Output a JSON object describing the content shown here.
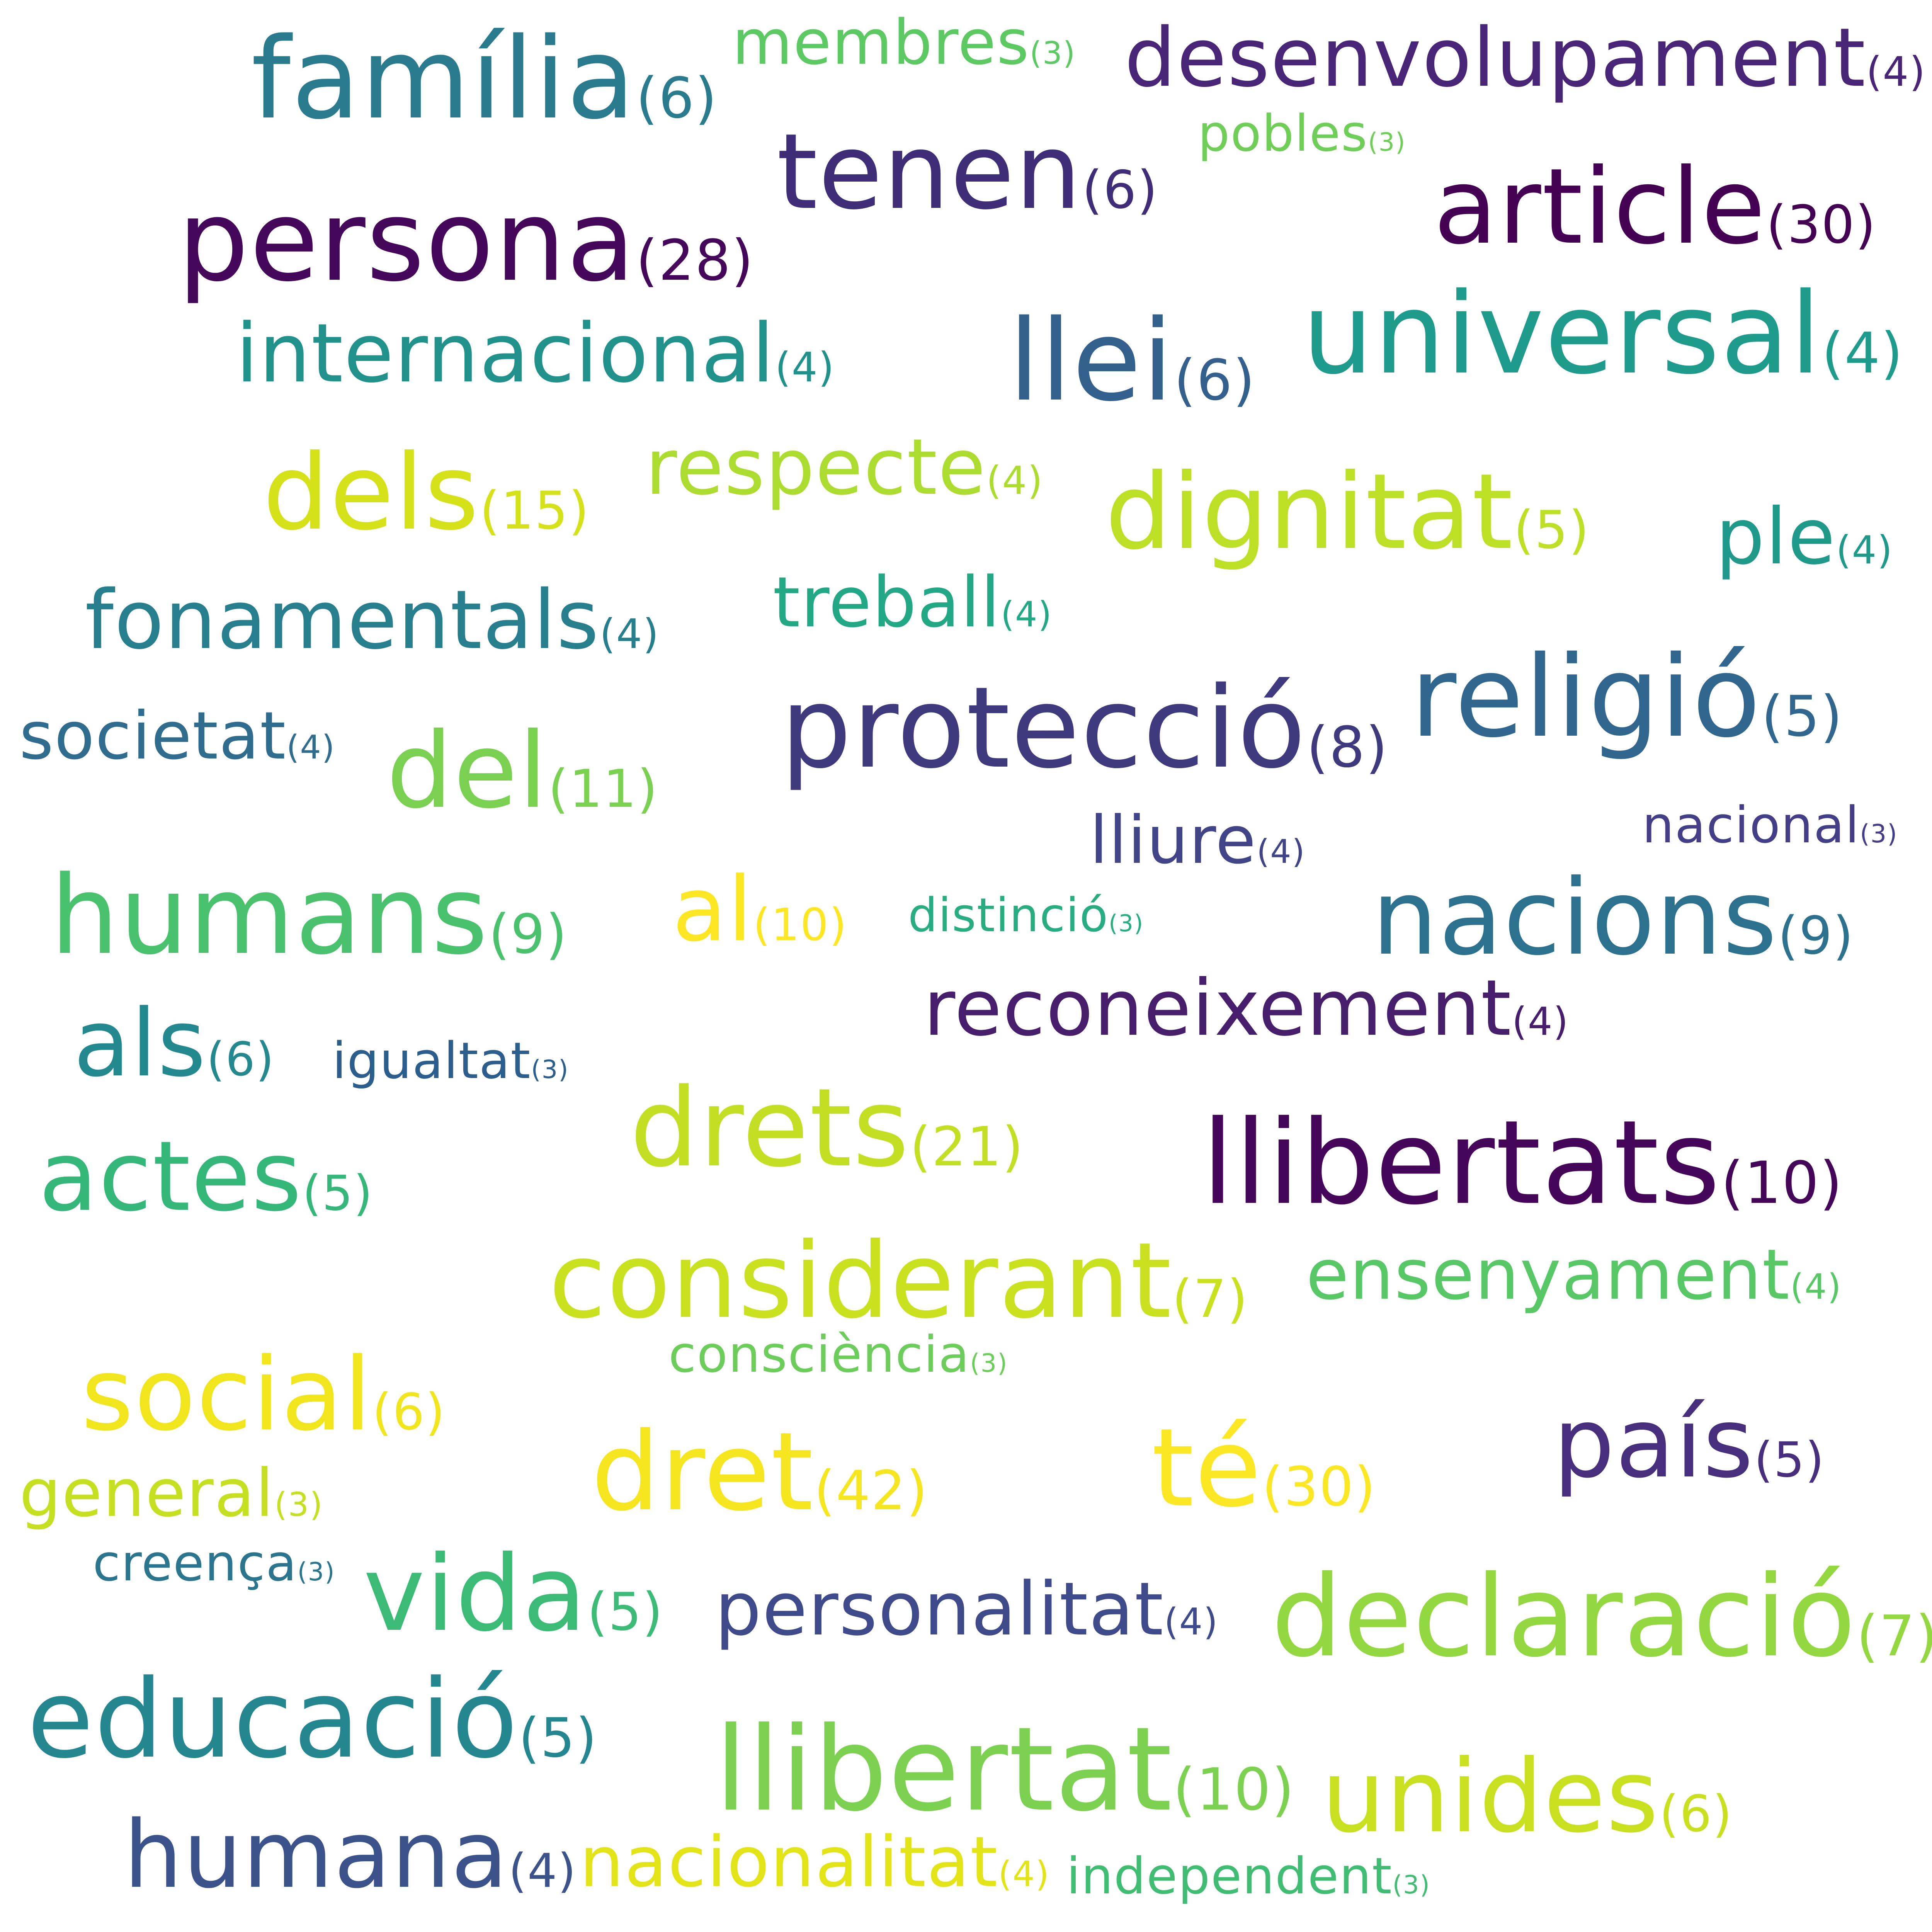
{
  "words": [
    {
      "text": "família",
      "count": "(6)",
      "color": "#2a7b8e"
    },
    {
      "text": "membres",
      "count": "(3)",
      "color": "#5dc963"
    },
    {
      "text": "desenvolupament",
      "count": "(4)",
      "color": "#482576"
    },
    {
      "text": "pobles",
      "count": "(3)",
      "color": "#6ece58"
    },
    {
      "text": "tenen",
      "count": "(6)",
      "color": "#3f2d78"
    },
    {
      "text": "persona",
      "count": "(28)",
      "color": "#44075a"
    },
    {
      "text": "article",
      "count": "(30)",
      "color": "#440154"
    },
    {
      "text": "internacional",
      "count": "(4)",
      "color": "#21918c"
    },
    {
      "text": "llei",
      "count": "(6)",
      "color": "#34608d"
    },
    {
      "text": "universal",
      "count": "(4)",
      "color": "#1e9b8a"
    },
    {
      "text": "dels",
      "count": "(15)",
      "color": "#d5e21a"
    },
    {
      "text": "respecte",
      "count": "(4)",
      "color": "#addc30"
    },
    {
      "text": "dignitat",
      "count": "(5)",
      "color": "#bddf26"
    },
    {
      "text": "ple",
      "count": "(4)",
      "color": "#1f998a"
    },
    {
      "text": "fonamentals",
      "count": "(4)",
      "color": "#277f8e"
    },
    {
      "text": "treball",
      "count": "(4)",
      "color": "#22a884"
    },
    {
      "text": "protecció",
      "count": "(8)",
      "color": "#3e3a7d"
    },
    {
      "text": "religió",
      "count": "(5)",
      "color": "#31668e"
    },
    {
      "text": "societat",
      "count": "(4)",
      "color": "#2f6c8e"
    },
    {
      "text": "del",
      "count": "(11)",
      "color": "#7ad151"
    },
    {
      "text": "lliure",
      "count": "(4)",
      "color": "#414487"
    },
    {
      "text": "nacional",
      "count": "(3)",
      "color": "#433e85"
    },
    {
      "text": "humans",
      "count": "(9)",
      "color": "#4ac16d"
    },
    {
      "text": "al",
      "count": "(10)",
      "color": "#fde725"
    },
    {
      "text": "distinció",
      "count": "(3)",
      "color": "#27ad81"
    },
    {
      "text": "nacions",
      "count": "(9)",
      "color": "#2c728e"
    },
    {
      "text": "reconeixement",
      "count": "(4)",
      "color": "#461e6c"
    },
    {
      "text": "als",
      "count": "(6)",
      "color": "#23898e"
    },
    {
      "text": "igualtat",
      "count": "(3)",
      "color": "#2c5e8d"
    },
    {
      "text": "drets",
      "count": "(21)",
      "color": "#c2df23"
    },
    {
      "text": "llibertats",
      "count": "(10)",
      "color": "#450559"
    },
    {
      "text": "actes",
      "count": "(5)",
      "color": "#35b779"
    },
    {
      "text": "considerant",
      "count": "(7)",
      "color": "#cae11f"
    },
    {
      "text": "ensenyament",
      "count": "(4)",
      "color": "#58c765"
    },
    {
      "text": "consciència",
      "count": "(3)",
      "color": "#6ccd5a"
    },
    {
      "text": "social",
      "count": "(6)",
      "color": "#f1e51d"
    },
    {
      "text": "dret",
      "count": "(42)",
      "color": "#f6e620"
    },
    {
      "text": "té",
      "count": "(30)",
      "color": "#fbe723"
    },
    {
      "text": "país",
      "count": "(5)",
      "color": "#472f7d"
    },
    {
      "text": "general",
      "count": "(3)",
      "color": "#c5e021"
    },
    {
      "text": "creença",
      "count": "(3)",
      "color": "#2b758e"
    },
    {
      "text": "vida",
      "count": "(5)",
      "color": "#3bbb75"
    },
    {
      "text": "personalitat",
      "count": "(4)",
      "color": "#3e4a89"
    },
    {
      "text": "declaració",
      "count": "(7)",
      "color": "#93d741"
    },
    {
      "text": "educació",
      "count": "(5)",
      "color": "#24868e"
    },
    {
      "text": "llibertat",
      "count": "(10)",
      "color": "#7cd250"
    },
    {
      "text": "unides",
      "count": "(6)",
      "color": "#c8e020"
    },
    {
      "text": "humana",
      "count": "(4)",
      "color": "#3b528b"
    },
    {
      "text": "nacionalitat",
      "count": "(4)",
      "color": "#e2e418"
    },
    {
      "text": "independent",
      "count": "(3)",
      "color": "#40bd72"
    }
  ]
}
